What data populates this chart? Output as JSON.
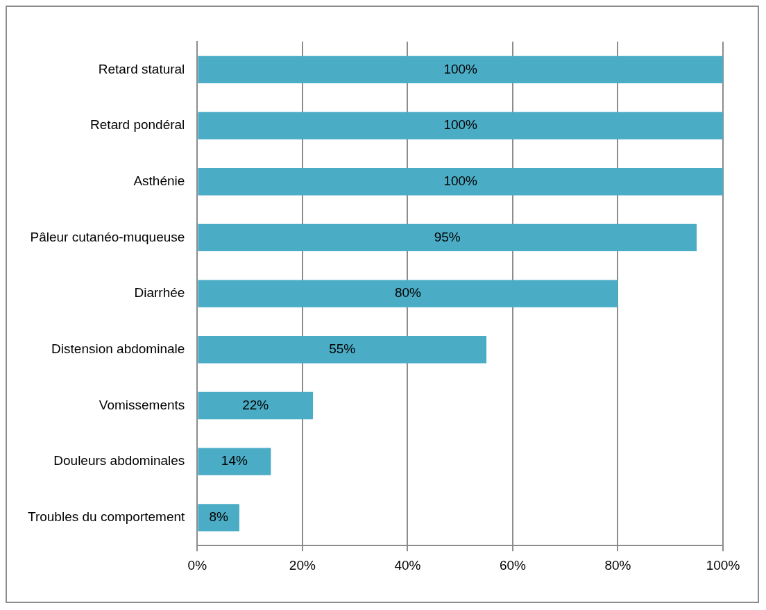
{
  "chart_data": {
    "type": "bar",
    "orientation": "horizontal",
    "categories": [
      "Retard statural",
      "Retard pondéral",
      "Asthénie",
      "Pâleur cutanéo-muqueuse",
      "Diarrhée",
      "Distension abdominale",
      "Vomissements",
      "Douleurs abdominales",
      "Troubles du comportement"
    ],
    "values": [
      100,
      100,
      100,
      95,
      80,
      55,
      22,
      14,
      8
    ],
    "value_labels": [
      "100%",
      "100%",
      "100%",
      "95%",
      "80%",
      "55%",
      "22%",
      "14%",
      "8%"
    ],
    "color": "#4bacc6",
    "xlim": [
      0,
      100
    ],
    "xticks": [
      {
        "value": 0,
        "label": "0%"
      },
      {
        "value": 20,
        "label": "20%"
      },
      {
        "value": 40,
        "label": "40%"
      },
      {
        "value": 60,
        "label": "60%"
      },
      {
        "value": 80,
        "label": "80%"
      },
      {
        "value": 100,
        "label": "100%"
      }
    ],
    "grid": "x",
    "legend": false
  }
}
